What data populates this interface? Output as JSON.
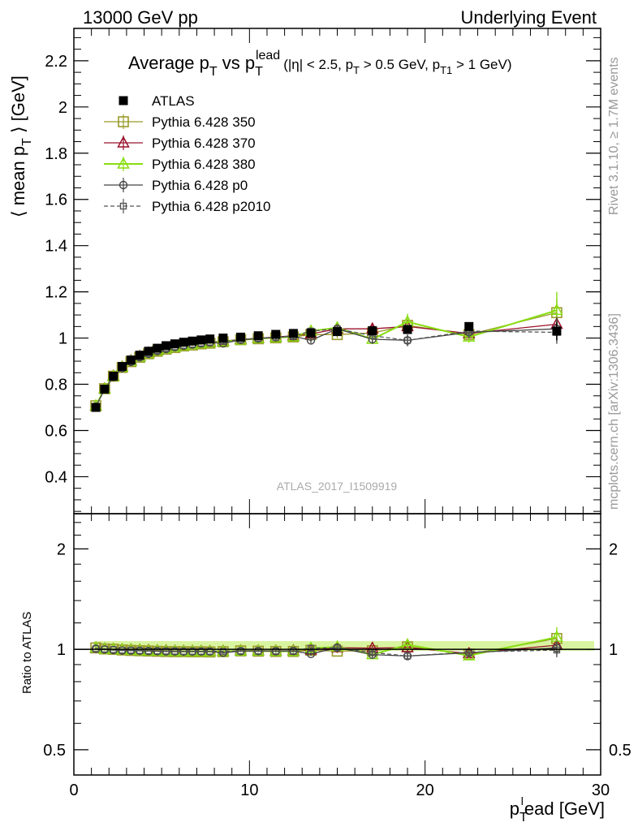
{
  "header": {
    "left": "13000 GeV pp",
    "right": "Underlying Event"
  },
  "side_labels": {
    "rivet": "Rivet 3.1.10, ≥ 1.7M events",
    "mcplots": "mcplots.cern.ch [arXiv:1306.3436]"
  },
  "watermark": "ATLAS_2017_I1509919",
  "colors": {
    "atlas": "#000000",
    "p350": "#9a9a2a",
    "p370": "#99112b",
    "p380": "#88dd11",
    "p0": "#444444",
    "p2010": "#555555"
  },
  "chart_data": [
    {
      "type": "line",
      "title": "Average p_T vs p_T^lead (|η| < 2.5, p_T > 0.5 GeV, p_T1 > 1 GeV)",
      "title_parts": {
        "main": "Average p",
        "sub1": "T",
        "vs": " vs p",
        "sub2": "T",
        "sup2": "lead",
        "cuts_open": "(|η| < 2.5, p",
        "cuts_sub1": "T",
        "cuts_mid": " > 0.5 GeV, p",
        "cuts_sub2": "T1",
        "cuts_close": " > 1 GeV)"
      },
      "ylabel": "⟨ mean p_T ⟩ [GeV]",
      "ylabel_parts": {
        "open": "⟨ mean p",
        "sub": "T",
        "close": " ⟩ [GeV]"
      },
      "xlim": [
        0,
        30
      ],
      "ylim": [
        0.24,
        2.34
      ],
      "y_ticks": [
        0.4,
        0.6,
        0.8,
        1.0,
        1.2,
        1.4,
        1.6,
        1.8,
        2.0,
        2.2
      ],
      "y_tick_labels": [
        "0.4",
        "0.6",
        "0.8",
        "1",
        "1.2",
        "1.4",
        "1.6",
        "1.8",
        "2",
        "2.2"
      ],
      "legend_position": "top-left",
      "x": [
        1.25,
        1.75,
        2.25,
        2.75,
        3.25,
        3.75,
        4.25,
        4.75,
        5.25,
        5.75,
        6.25,
        6.75,
        7.25,
        7.75,
        8.5,
        9.5,
        10.5,
        11.5,
        12.5,
        13.5,
        15.0,
        17.0,
        19.0,
        22.5,
        27.5
      ],
      "series": [
        {
          "name": "ATLAS",
          "marker": "square-filled",
          "line": "none",
          "values": [
            0.7,
            0.779,
            0.835,
            0.877,
            0.905,
            0.926,
            0.943,
            0.956,
            0.967,
            0.975,
            0.982,
            0.987,
            0.992,
            0.996,
            1.0,
            1.004,
            1.01,
            1.016,
            1.02,
            1.022,
            1.028,
            1.032,
            1.037,
            1.05,
            1.03
          ],
          "errors": [
            0.005,
            0.004,
            0.004,
            0.004,
            0.004,
            0.004,
            0.004,
            0.004,
            0.004,
            0.004,
            0.004,
            0.004,
            0.004,
            0.004,
            0.004,
            0.005,
            0.005,
            0.006,
            0.006,
            0.007,
            0.008,
            0.01,
            0.014,
            0.018,
            0.04
          ]
        },
        {
          "name": "Pythia 6.428 350",
          "marker": "square-open",
          "line": "solid",
          "values": [
            0.707,
            0.781,
            0.835,
            0.873,
            0.898,
            0.917,
            0.932,
            0.943,
            0.952,
            0.959,
            0.966,
            0.97,
            0.975,
            0.978,
            0.984,
            0.993,
            0.997,
            1.001,
            1.005,
            1.015,
            1.015,
            1.022,
            1.055,
            1.015,
            1.11
          ],
          "errors": [
            0.004,
            0.004,
            0.004,
            0.004,
            0.004,
            0.004,
            0.004,
            0.004,
            0.004,
            0.004,
            0.004,
            0.004,
            0.004,
            0.004,
            0.005,
            0.006,
            0.007,
            0.008,
            0.009,
            0.012,
            0.015,
            0.02,
            0.03,
            0.025,
            0.06
          ]
        },
        {
          "name": "Pythia 6.428 370",
          "marker": "triangle-open",
          "line": "solid",
          "values": [
            0.706,
            0.781,
            0.836,
            0.875,
            0.902,
            0.921,
            0.936,
            0.947,
            0.957,
            0.963,
            0.969,
            0.974,
            0.978,
            0.982,
            0.987,
            0.994,
            1.0,
            1.004,
            1.01,
            1.018,
            1.04,
            1.04,
            1.05,
            1.02,
            1.06
          ],
          "errors": [
            0.004,
            0.004,
            0.004,
            0.004,
            0.004,
            0.004,
            0.004,
            0.004,
            0.004,
            0.004,
            0.004,
            0.004,
            0.004,
            0.004,
            0.005,
            0.006,
            0.007,
            0.008,
            0.009,
            0.012,
            0.015,
            0.02,
            0.03,
            0.025,
            0.05
          ]
        },
        {
          "name": "Pythia 6.428 380",
          "marker": "triangle-open",
          "line": "solid",
          "values": [
            0.707,
            0.78,
            0.835,
            0.874,
            0.9,
            0.919,
            0.933,
            0.945,
            0.954,
            0.961,
            0.967,
            0.972,
            0.976,
            0.98,
            0.985,
            0.992,
            0.998,
            1.002,
            1.006,
            1.03,
            1.045,
            0.995,
            1.07,
            1.005,
            1.12
          ],
          "errors": [
            0.004,
            0.004,
            0.004,
            0.004,
            0.004,
            0.004,
            0.004,
            0.004,
            0.004,
            0.004,
            0.004,
            0.004,
            0.004,
            0.004,
            0.005,
            0.006,
            0.007,
            0.008,
            0.009,
            0.012,
            0.015,
            0.02,
            0.035,
            0.025,
            0.08
          ]
        },
        {
          "name": "Pythia 6.428 p0",
          "marker": "circle-open",
          "line": "solid",
          "values": [
            0.703,
            0.778,
            0.831,
            0.87,
            0.897,
            0.917,
            0.932,
            0.944,
            0.953,
            0.961,
            0.967,
            0.972,
            0.977,
            0.981,
            0.977,
            0.992,
            0.998,
            1.003,
            1.008,
            0.99,
            1.04,
            0.995,
            0.99,
            1.025,
            1.04
          ],
          "errors": [
            0.004,
            0.004,
            0.004,
            0.004,
            0.004,
            0.004,
            0.004,
            0.004,
            0.004,
            0.004,
            0.004,
            0.004,
            0.004,
            0.004,
            0.005,
            0.006,
            0.007,
            0.008,
            0.009,
            0.012,
            0.015,
            0.02,
            0.025,
            0.025,
            0.05
          ]
        },
        {
          "name": "Pythia 6.428 p2010",
          "marker": "square-small-open",
          "line": "dashed",
          "values": [
            0.703,
            0.78,
            0.833,
            0.872,
            0.899,
            0.918,
            0.933,
            0.945,
            0.955,
            0.962,
            0.968,
            0.973,
            0.978,
            0.982,
            0.986,
            0.993,
            0.999,
            1.004,
            1.009,
            1.03,
            1.04,
            1.01,
            0.99,
            1.03,
            1.025
          ],
          "errors": [
            0.004,
            0.004,
            0.004,
            0.004,
            0.004,
            0.004,
            0.004,
            0.004,
            0.004,
            0.004,
            0.004,
            0.004,
            0.004,
            0.004,
            0.005,
            0.006,
            0.007,
            0.008,
            0.009,
            0.012,
            0.015,
            0.02,
            0.025,
            0.025,
            0.05
          ]
        }
      ]
    },
    {
      "type": "line",
      "ylabel": "Ratio to ATLAS",
      "xlabel": "p_T^lead [GeV]",
      "xlabel_parts": {
        "p": "p",
        "sub": "T",
        "sup": "l",
        "rest": "ead [GeV]"
      },
      "xlim": [
        0,
        30
      ],
      "x_ticks": [
        0,
        10,
        20,
        30
      ],
      "x_tick_labels": [
        "0",
        "10",
        "20",
        "30"
      ],
      "y_scale": "log",
      "ylim": [
        0.42,
        2.55
      ],
      "y_ticks": [
        0.5,
        1,
        2
      ],
      "y_tick_labels": [
        "0.5",
        "1",
        "2"
      ],
      "reference_band": "ATLAS uncertainty (yellow-green band)",
      "note": "ratio values are each series divided by ATLAS"
    }
  ]
}
